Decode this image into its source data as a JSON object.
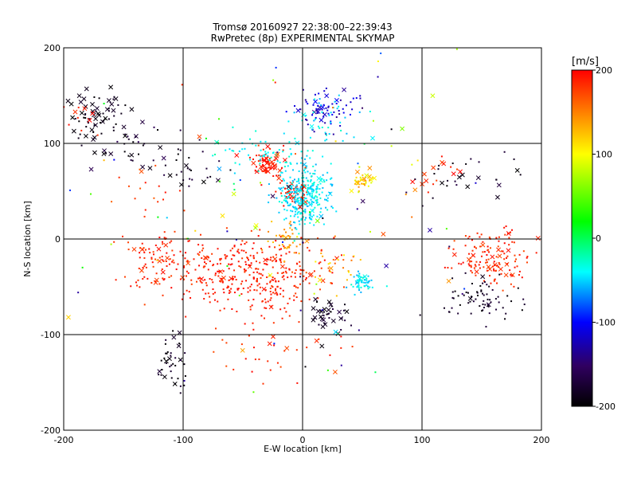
{
  "chart_data": {
    "type": "scatter",
    "title": "Tromsø 20160927 22:38:00–22:39:43",
    "subtitle": "RwPretec (8p) EXPERIMENTAL SKYMAP",
    "xlabel": "E-W location [km]",
    "ylabel": "N-S location [km]",
    "xlim": [
      -200,
      200
    ],
    "ylim": [
      -200,
      200
    ],
    "x_ticks": [
      -200,
      -100,
      0,
      100,
      200
    ],
    "y_ticks": [
      -200,
      -100,
      0,
      100,
      200
    ],
    "x_tick_labels": [
      "-200",
      "-100",
      "0",
      "100",
      "200"
    ],
    "y_tick_labels": [
      "-200",
      "-100",
      "0",
      "100",
      "200"
    ],
    "grid": true,
    "colorbar": {
      "unit_label": "[m/s]",
      "range": [
        -200,
        200
      ],
      "ticks": [
        200,
        100,
        0,
        -100,
        -200
      ],
      "tick_labels": [
        "200",
        "100",
        "0",
        "-100",
        "-200"
      ],
      "colormap": "black-purple-blue-cyan-green-yellow-red"
    },
    "markers": {
      "dot": "small point",
      "cross": "x"
    },
    "clusters": [
      {
        "center": [
          -170,
          130
        ],
        "spread": [
          22,
          22
        ],
        "count": 70,
        "v": [
          -200,
          -180
        ],
        "cross_frac": 0.55
      },
      {
        "center": [
          -140,
          95
        ],
        "spread": [
          35,
          20
        ],
        "count": 35,
        "v": [
          -200,
          -160
        ],
        "cross_frac": 0.35
      },
      {
        "center": [
          -90,
          75
        ],
        "spread": [
          25,
          25
        ],
        "count": 25,
        "v": [
          -200,
          -170
        ],
        "cross_frac": 0.3
      },
      {
        "center": [
          -185,
          120
        ],
        "spread": [
          12,
          20
        ],
        "count": 10,
        "v": [
          180,
          200
        ],
        "cross_frac": 0.2
      },
      {
        "center": [
          -120,
          50
        ],
        "spread": [
          30,
          30
        ],
        "count": 20,
        "v": [
          160,
          200
        ],
        "cross_frac": 0.2
      },
      {
        "center": [
          -120,
          -20
        ],
        "spread": [
          30,
          25
        ],
        "count": 90,
        "v": [
          170,
          200
        ],
        "cross_frac": 0.1
      },
      {
        "center": [
          -60,
          -35
        ],
        "spread": [
          45,
          30
        ],
        "count": 220,
        "v": [
          175,
          200
        ],
        "cross_frac": 0.05
      },
      {
        "center": [
          -20,
          -40
        ],
        "spread": [
          30,
          35
        ],
        "count": 140,
        "v": [
          175,
          200
        ],
        "cross_frac": 0.05
      },
      {
        "center": [
          -15,
          0
        ],
        "spread": [
          15,
          15
        ],
        "count": 40,
        "v": [
          120,
          150
        ],
        "cross_frac": 0.1
      },
      {
        "center": [
          -30,
          80
        ],
        "spread": [
          12,
          12
        ],
        "count": 70,
        "v": [
          180,
          200
        ],
        "cross_frac": 0.3
      },
      {
        "center": [
          -10,
          50
        ],
        "spread": [
          12,
          10
        ],
        "count": 45,
        "v": [
          180,
          200
        ],
        "cross_frac": 0.25
      },
      {
        "center": [
          0,
          45
        ],
        "spread": [
          18,
          28
        ],
        "count": 300,
        "v": [
          -60,
          -30
        ],
        "cross_frac": 0.03
      },
      {
        "center": [
          -30,
          90
        ],
        "spread": [
          30,
          15
        ],
        "count": 60,
        "v": [
          -50,
          -30
        ],
        "cross_frac": 0.03
      },
      {
        "center": [
          20,
          135
        ],
        "spread": [
          20,
          18
        ],
        "count": 70,
        "v": [
          -140,
          -100
        ],
        "cross_frac": 0.2
      },
      {
        "center": [
          20,
          120
        ],
        "spread": [
          22,
          25
        ],
        "count": 40,
        "v": [
          -60,
          -30
        ],
        "cross_frac": 0.05
      },
      {
        "center": [
          50,
          60
        ],
        "spread": [
          10,
          10
        ],
        "count": 35,
        "v": [
          80,
          150
        ],
        "cross_frac": 0.25
      },
      {
        "center": [
          50,
          -45
        ],
        "spread": [
          8,
          8
        ],
        "count": 60,
        "v": [
          -60,
          -30
        ],
        "cross_frac": 0.02
      },
      {
        "center": [
          25,
          -30
        ],
        "spread": [
          20,
          20
        ],
        "count": 40,
        "v": [
          100,
          200
        ],
        "cross_frac": 0.1
      },
      {
        "center": [
          20,
          -80
        ],
        "spread": [
          15,
          15
        ],
        "count": 40,
        "v": [
          -200,
          -170
        ],
        "cross_frac": 0.4
      },
      {
        "center": [
          -110,
          -130
        ],
        "spread": [
          10,
          30
        ],
        "count": 40,
        "v": [
          -200,
          -170
        ],
        "cross_frac": 0.4
      },
      {
        "center": [
          -20,
          -120
        ],
        "spread": [
          40,
          25
        ],
        "count": 30,
        "v": [
          170,
          200
        ],
        "cross_frac": 0.05
      },
      {
        "center": [
          160,
          -20
        ],
        "spread": [
          25,
          25
        ],
        "count": 140,
        "v": [
          170,
          200
        ],
        "cross_frac": 0.1
      },
      {
        "center": [
          150,
          -60
        ],
        "spread": [
          30,
          18
        ],
        "count": 70,
        "v": [
          -200,
          -170
        ],
        "cross_frac": 0.05
      },
      {
        "center": [
          140,
          60
        ],
        "spread": [
          40,
          25
        ],
        "count": 25,
        "v": [
          -200,
          -170
        ],
        "cross_frac": 0.25
      },
      {
        "center": [
          120,
          70
        ],
        "spread": [
          20,
          20
        ],
        "count": 15,
        "v": [
          170,
          200
        ],
        "cross_frac": 0.5
      },
      {
        "center": [
          0,
          0
        ],
        "spread": [
          150,
          150
        ],
        "count": 120,
        "v": [
          -200,
          200
        ],
        "cross_frac": 0.15
      }
    ]
  }
}
